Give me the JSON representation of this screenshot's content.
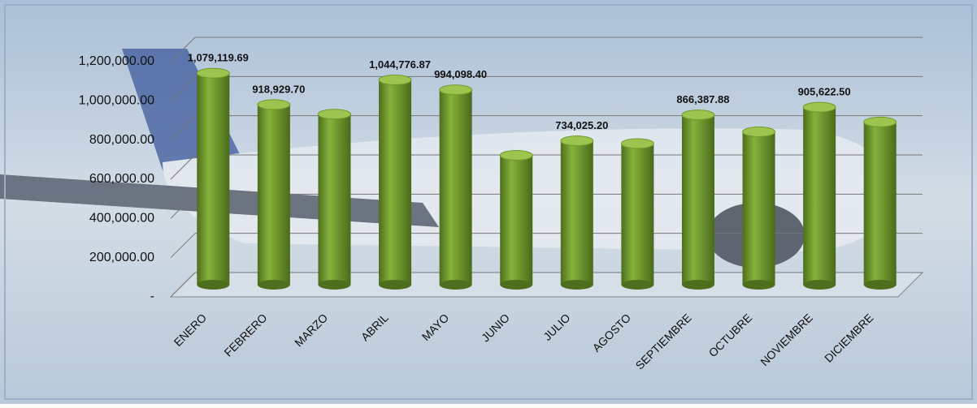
{
  "chart_data": {
    "type": "bar",
    "categories": [
      "ENERO",
      "FEBRERO",
      "MARZO",
      "ABRIL",
      "MAYO",
      "JUNIO",
      "JULIO",
      "AGOSTO",
      "SEPTIEMBRE",
      "OCTUBRE",
      "NOVIEMBRE",
      "DICIEMBRE"
    ],
    "values": [
      1079119.69,
      918929.7,
      870000,
      1044776.87,
      994098.4,
      660000,
      734025.2,
      720000,
      866387.88,
      780000,
      905622.5,
      830000
    ],
    "value_labels": [
      "1,079,119.69",
      "918,929.70",
      null,
      "1,044,776.87",
      "994,098.40",
      null,
      "734,025.20",
      null,
      "866,387.88",
      null,
      "905,622.50",
      null
    ],
    "color": "#6e9a2c",
    "ylim": [
      0,
      1200000
    ],
    "yticks": [
      {
        "value": 0,
        "label": "-"
      },
      {
        "value": 200000,
        "label": "200,000.00"
      },
      {
        "value": 400000,
        "label": "400,000.00"
      },
      {
        "value": 600000,
        "label": "600,000.00"
      },
      {
        "value": 800000,
        "label": "800,000.00"
      },
      {
        "value": 1000000,
        "label": "1,000,000.00"
      },
      {
        "value": 1200000,
        "label": "1,200,000.00"
      }
    ],
    "grid": true
  }
}
